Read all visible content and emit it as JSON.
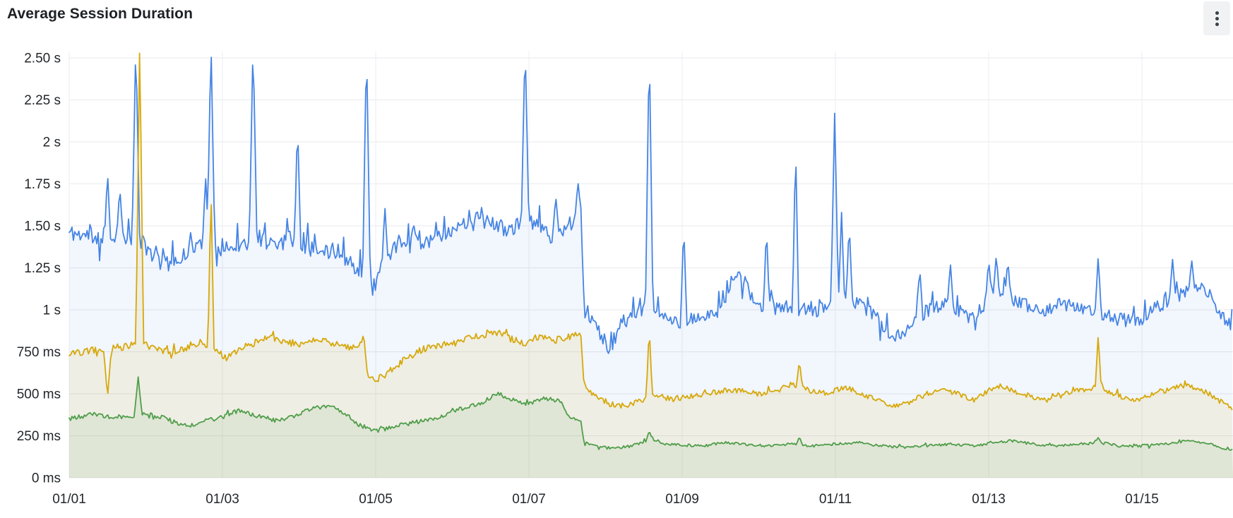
{
  "panel": {
    "title": "Average Session Duration",
    "menu_icon": "kebab-vertical-icon"
  },
  "colors": {
    "background": "#ffffff",
    "title_text": "#1d2126",
    "axis_text": "#23272b",
    "grid_horizontal": "#e8eaed",
    "grid_vertical": "#eceef0",
    "menu_button_bg": "#f1f2f3",
    "menu_dot": "#3c4146"
  },
  "chart_data": {
    "type": "line",
    "title": "Average Session Duration",
    "unit": "seconds",
    "legend": false,
    "grid": true,
    "x_axis": {
      "tick_labels": [
        "01/01",
        "01/03",
        "01/05",
        "01/07",
        "01/09",
        "01/11",
        "01/13",
        "01/15"
      ],
      "tick_days": [
        0,
        2,
        4,
        6,
        8,
        10,
        12,
        14
      ],
      "start_day": 0,
      "end_day": 15.19
    },
    "y_axis": {
      "tick_labels": [
        "0 ms",
        "250 ms",
        "500 ms",
        "750 ms",
        "1 s",
        "1.25 s",
        "1.50 s",
        "1.75 s",
        "2 s",
        "2.25 s",
        "2.50 s"
      ],
      "tick_values_seconds": [
        0,
        0.25,
        0.5,
        0.75,
        1,
        1.25,
        1.5,
        1.75,
        2,
        2.25,
        2.5
      ],
      "ylim": [
        0,
        2.5
      ],
      "clip_value": 2.54
    },
    "event_notes": [
      "all three series drop sharply at ~day 6.7 (just after 01/07)",
      "clipped spikes exceed the 2.5 s axis maximum"
    ],
    "noise_seed": 11,
    "series": [
      {
        "name": "blue-series",
        "color": "#4584e4",
        "fill_opacity": 0.07,
        "stroke_width": 1.8,
        "noise_burst_prob": 0.1,
        "noise_burst_mult": 2.8,
        "noise_amp": [
          [
            0,
            0.05
          ],
          [
            6.68,
            0.05
          ],
          [
            6.75,
            0.042
          ],
          [
            15.19,
            0.042
          ]
        ],
        "baseline": [
          [
            0,
            1.46
          ],
          [
            0.25,
            1.44
          ],
          [
            0.45,
            1.42
          ],
          [
            0.7,
            1.45
          ],
          [
            0.95,
            1.4
          ],
          [
            1.1,
            1.32
          ],
          [
            1.25,
            1.27
          ],
          [
            1.45,
            1.3
          ],
          [
            1.6,
            1.38
          ],
          [
            1.8,
            1.4
          ],
          [
            2.0,
            1.36
          ],
          [
            2.2,
            1.38
          ],
          [
            2.45,
            1.42
          ],
          [
            2.7,
            1.4
          ],
          [
            2.9,
            1.43
          ],
          [
            3.1,
            1.38
          ],
          [
            3.3,
            1.33
          ],
          [
            3.5,
            1.36
          ],
          [
            3.7,
            1.26
          ],
          [
            3.85,
            1.2
          ],
          [
            3.95,
            1.12
          ],
          [
            4.05,
            1.22
          ],
          [
            4.2,
            1.34
          ],
          [
            4.4,
            1.42
          ],
          [
            4.6,
            1.4
          ],
          [
            4.8,
            1.44
          ],
          [
            5.0,
            1.46
          ],
          [
            5.2,
            1.5
          ],
          [
            5.45,
            1.52
          ],
          [
            5.7,
            1.48
          ],
          [
            5.9,
            1.5
          ],
          [
            6.1,
            1.52
          ],
          [
            6.3,
            1.44
          ],
          [
            6.5,
            1.5
          ],
          [
            6.62,
            1.55
          ],
          [
            6.68,
            1.6
          ],
          [
            6.72,
            1.05
          ],
          [
            6.8,
            0.95
          ],
          [
            6.95,
            0.85
          ],
          [
            7.05,
            0.76
          ],
          [
            7.2,
            0.92
          ],
          [
            7.35,
            0.96
          ],
          [
            7.5,
            1.0
          ],
          [
            7.65,
            0.97
          ],
          [
            7.8,
            0.94
          ],
          [
            8.0,
            0.92
          ],
          [
            8.2,
            0.95
          ],
          [
            8.4,
            0.96
          ],
          [
            8.55,
            1.05
          ],
          [
            8.65,
            1.2
          ],
          [
            8.8,
            1.18
          ],
          [
            8.95,
            1.02
          ],
          [
            9.1,
            0.99
          ],
          [
            9.3,
            1.02
          ],
          [
            9.5,
            1.0
          ],
          [
            9.7,
            1.0
          ],
          [
            9.9,
            1.0
          ],
          [
            10.0,
            1.05
          ],
          [
            10.15,
            1.06
          ],
          [
            10.35,
            1.02
          ],
          [
            10.55,
            0.95
          ],
          [
            10.75,
            0.84
          ],
          [
            10.9,
            0.86
          ],
          [
            11.05,
            0.96
          ],
          [
            11.25,
            1.0
          ],
          [
            11.45,
            1.03
          ],
          [
            11.6,
            1.0
          ],
          [
            11.75,
            0.94
          ],
          [
            11.9,
            1.0
          ],
          [
            12.05,
            1.1
          ],
          [
            12.2,
            1.08
          ],
          [
            12.35,
            1.05
          ],
          [
            12.55,
            1.02
          ],
          [
            12.75,
            1.0
          ],
          [
            12.95,
            1.04
          ],
          [
            13.15,
            1.02
          ],
          [
            13.35,
            1.0
          ],
          [
            13.55,
            0.97
          ],
          [
            13.75,
            0.94
          ],
          [
            13.95,
            0.93
          ],
          [
            14.15,
            1.0
          ],
          [
            14.35,
            1.06
          ],
          [
            14.55,
            1.1
          ],
          [
            14.75,
            1.13
          ],
          [
            14.9,
            1.08
          ],
          [
            15.0,
            1.0
          ],
          [
            15.1,
            0.93
          ],
          [
            15.19,
            0.97
          ]
        ],
        "spikes": [
          [
            0.5,
            1.82
          ],
          [
            0.66,
            1.73
          ],
          [
            0.87,
            2.6,
            0.05
          ],
          [
            1.78,
            1.8
          ],
          [
            1.85,
            2.6,
            0.05
          ],
          [
            2.4,
            2.6,
            0.05
          ],
          [
            2.98,
            2.12
          ],
          [
            3.88,
            2.6,
            0.05
          ],
          [
            4.12,
            1.62
          ],
          [
            5.32,
            1.6
          ],
          [
            5.95,
            2.6,
            0.05
          ],
          [
            6.35,
            1.68
          ],
          [
            6.64,
            1.76
          ],
          [
            7.57,
            2.6,
            0.05
          ],
          [
            8.02,
            1.52
          ],
          [
            9.1,
            1.5
          ],
          [
            9.48,
            2.0
          ],
          [
            9.99,
            2.17,
            0.05
          ],
          [
            10.08,
            1.58
          ],
          [
            10.18,
            1.52
          ],
          [
            11.1,
            1.25
          ],
          [
            11.5,
            1.28
          ],
          [
            12.0,
            1.3
          ],
          [
            12.1,
            1.33
          ],
          [
            12.25,
            1.3
          ],
          [
            13.43,
            1.32
          ],
          [
            14.4,
            1.3
          ],
          [
            14.65,
            1.3
          ]
        ]
      },
      {
        "name": "yellow-series",
        "color": "#d6a80a",
        "fill_opacity": 0.1,
        "stroke_width": 1.8,
        "noise_burst_prob": 0.05,
        "noise_burst_mult": 2.2,
        "noise_amp": [
          [
            0,
            0.022
          ],
          [
            6.68,
            0.022
          ],
          [
            6.75,
            0.016
          ],
          [
            15.19,
            0.016
          ]
        ],
        "baseline": [
          [
            0,
            0.73
          ],
          [
            0.3,
            0.76
          ],
          [
            0.6,
            0.77
          ],
          [
            0.9,
            0.8
          ],
          [
            1.1,
            0.78
          ],
          [
            1.3,
            0.74
          ],
          [
            1.5,
            0.77
          ],
          [
            1.7,
            0.81
          ],
          [
            1.9,
            0.76
          ],
          [
            2.05,
            0.71
          ],
          [
            2.2,
            0.76
          ],
          [
            2.4,
            0.8
          ],
          [
            2.6,
            0.83
          ],
          [
            2.8,
            0.81
          ],
          [
            3.0,
            0.79
          ],
          [
            3.2,
            0.83
          ],
          [
            3.45,
            0.8
          ],
          [
            3.65,
            0.77
          ],
          [
            3.8,
            0.8
          ],
          [
            3.9,
            0.62
          ],
          [
            4.0,
            0.58
          ],
          [
            4.15,
            0.62
          ],
          [
            4.35,
            0.7
          ],
          [
            4.6,
            0.76
          ],
          [
            4.85,
            0.79
          ],
          [
            5.1,
            0.81
          ],
          [
            5.3,
            0.84
          ],
          [
            5.55,
            0.87
          ],
          [
            5.75,
            0.83
          ],
          [
            5.95,
            0.8
          ],
          [
            6.15,
            0.84
          ],
          [
            6.35,
            0.82
          ],
          [
            6.55,
            0.84
          ],
          [
            6.68,
            0.85
          ],
          [
            6.72,
            0.55
          ],
          [
            6.85,
            0.49
          ],
          [
            7.05,
            0.44
          ],
          [
            7.25,
            0.42
          ],
          [
            7.45,
            0.46
          ],
          [
            7.65,
            0.49
          ],
          [
            7.85,
            0.47
          ],
          [
            8.05,
            0.48
          ],
          [
            8.3,
            0.5
          ],
          [
            8.55,
            0.52
          ],
          [
            8.8,
            0.52
          ],
          [
            9.0,
            0.5
          ],
          [
            9.25,
            0.52
          ],
          [
            9.45,
            0.55
          ],
          [
            9.65,
            0.52
          ],
          [
            9.9,
            0.5
          ],
          [
            10.1,
            0.54
          ],
          [
            10.3,
            0.51
          ],
          [
            10.55,
            0.46
          ],
          [
            10.75,
            0.42
          ],
          [
            10.95,
            0.45
          ],
          [
            11.15,
            0.49
          ],
          [
            11.4,
            0.52
          ],
          [
            11.6,
            0.5
          ],
          [
            11.8,
            0.46
          ],
          [
            12.0,
            0.52
          ],
          [
            12.15,
            0.55
          ],
          [
            12.35,
            0.51
          ],
          [
            12.6,
            0.48
          ],
          [
            12.8,
            0.46
          ],
          [
            13.0,
            0.5
          ],
          [
            13.2,
            0.52
          ],
          [
            13.45,
            0.53
          ],
          [
            13.65,
            0.5
          ],
          [
            13.85,
            0.46
          ],
          [
            14.05,
            0.48
          ],
          [
            14.3,
            0.52
          ],
          [
            14.55,
            0.55
          ],
          [
            14.75,
            0.53
          ],
          [
            14.95,
            0.48
          ],
          [
            15.1,
            0.43
          ],
          [
            15.19,
            0.41
          ]
        ],
        "spikes": [
          [
            0.5,
            0.48,
            0.05
          ],
          [
            0.92,
            2.6,
            0.05
          ],
          [
            1.85,
            1.72
          ],
          [
            3.84,
            0.86
          ],
          [
            7.57,
            0.9
          ],
          [
            9.53,
            0.7
          ],
          [
            13.43,
            0.85
          ]
        ]
      },
      {
        "name": "green-series",
        "color": "#4f9e4a",
        "fill_opacity": 0.09,
        "stroke_width": 1.8,
        "noise_burst_prob": 0.05,
        "noise_burst_mult": 2.2,
        "noise_amp": [
          [
            0,
            0.013
          ],
          [
            6.68,
            0.013
          ],
          [
            6.75,
            0.008
          ],
          [
            15.19,
            0.008
          ]
        ],
        "baseline": [
          [
            0,
            0.35
          ],
          [
            0.3,
            0.38
          ],
          [
            0.6,
            0.36
          ],
          [
            0.85,
            0.37
          ],
          [
            1.0,
            0.38
          ],
          [
            1.2,
            0.36
          ],
          [
            1.45,
            0.32
          ],
          [
            1.6,
            0.31
          ],
          [
            1.8,
            0.34
          ],
          [
            2.0,
            0.36
          ],
          [
            2.2,
            0.4
          ],
          [
            2.45,
            0.37
          ],
          [
            2.7,
            0.34
          ],
          [
            2.95,
            0.37
          ],
          [
            3.15,
            0.41
          ],
          [
            3.4,
            0.43
          ],
          [
            3.6,
            0.38
          ],
          [
            3.8,
            0.31
          ],
          [
            4.0,
            0.28
          ],
          [
            4.2,
            0.3
          ],
          [
            4.5,
            0.33
          ],
          [
            4.8,
            0.36
          ],
          [
            5.1,
            0.41
          ],
          [
            5.35,
            0.44
          ],
          [
            5.6,
            0.5
          ],
          [
            5.8,
            0.46
          ],
          [
            6.0,
            0.44
          ],
          [
            6.2,
            0.47
          ],
          [
            6.4,
            0.46
          ],
          [
            6.52,
            0.36
          ],
          [
            6.68,
            0.34
          ],
          [
            6.72,
            0.21
          ],
          [
            6.9,
            0.185
          ],
          [
            7.1,
            0.175
          ],
          [
            7.35,
            0.19
          ],
          [
            7.6,
            0.23
          ],
          [
            7.8,
            0.2
          ],
          [
            8.0,
            0.195
          ],
          [
            8.3,
            0.19
          ],
          [
            8.55,
            0.21
          ],
          [
            8.8,
            0.2
          ],
          [
            9.1,
            0.19
          ],
          [
            9.4,
            0.2
          ],
          [
            9.7,
            0.19
          ],
          [
            10.0,
            0.2
          ],
          [
            10.3,
            0.21
          ],
          [
            10.6,
            0.19
          ],
          [
            10.9,
            0.18
          ],
          [
            11.2,
            0.19
          ],
          [
            11.5,
            0.2
          ],
          [
            11.8,
            0.19
          ],
          [
            12.1,
            0.21
          ],
          [
            12.3,
            0.22
          ],
          [
            12.6,
            0.2
          ],
          [
            12.9,
            0.19
          ],
          [
            13.2,
            0.2
          ],
          [
            13.45,
            0.21
          ],
          [
            13.7,
            0.19
          ],
          [
            14.0,
            0.19
          ],
          [
            14.3,
            0.2
          ],
          [
            14.6,
            0.22
          ],
          [
            14.9,
            0.2
          ],
          [
            15.1,
            0.17
          ],
          [
            15.19,
            0.16
          ]
        ],
        "spikes": [
          [
            0.9,
            0.6,
            0.05
          ],
          [
            7.57,
            0.28
          ],
          [
            9.53,
            0.245
          ],
          [
            13.43,
            0.24
          ]
        ]
      }
    ]
  }
}
